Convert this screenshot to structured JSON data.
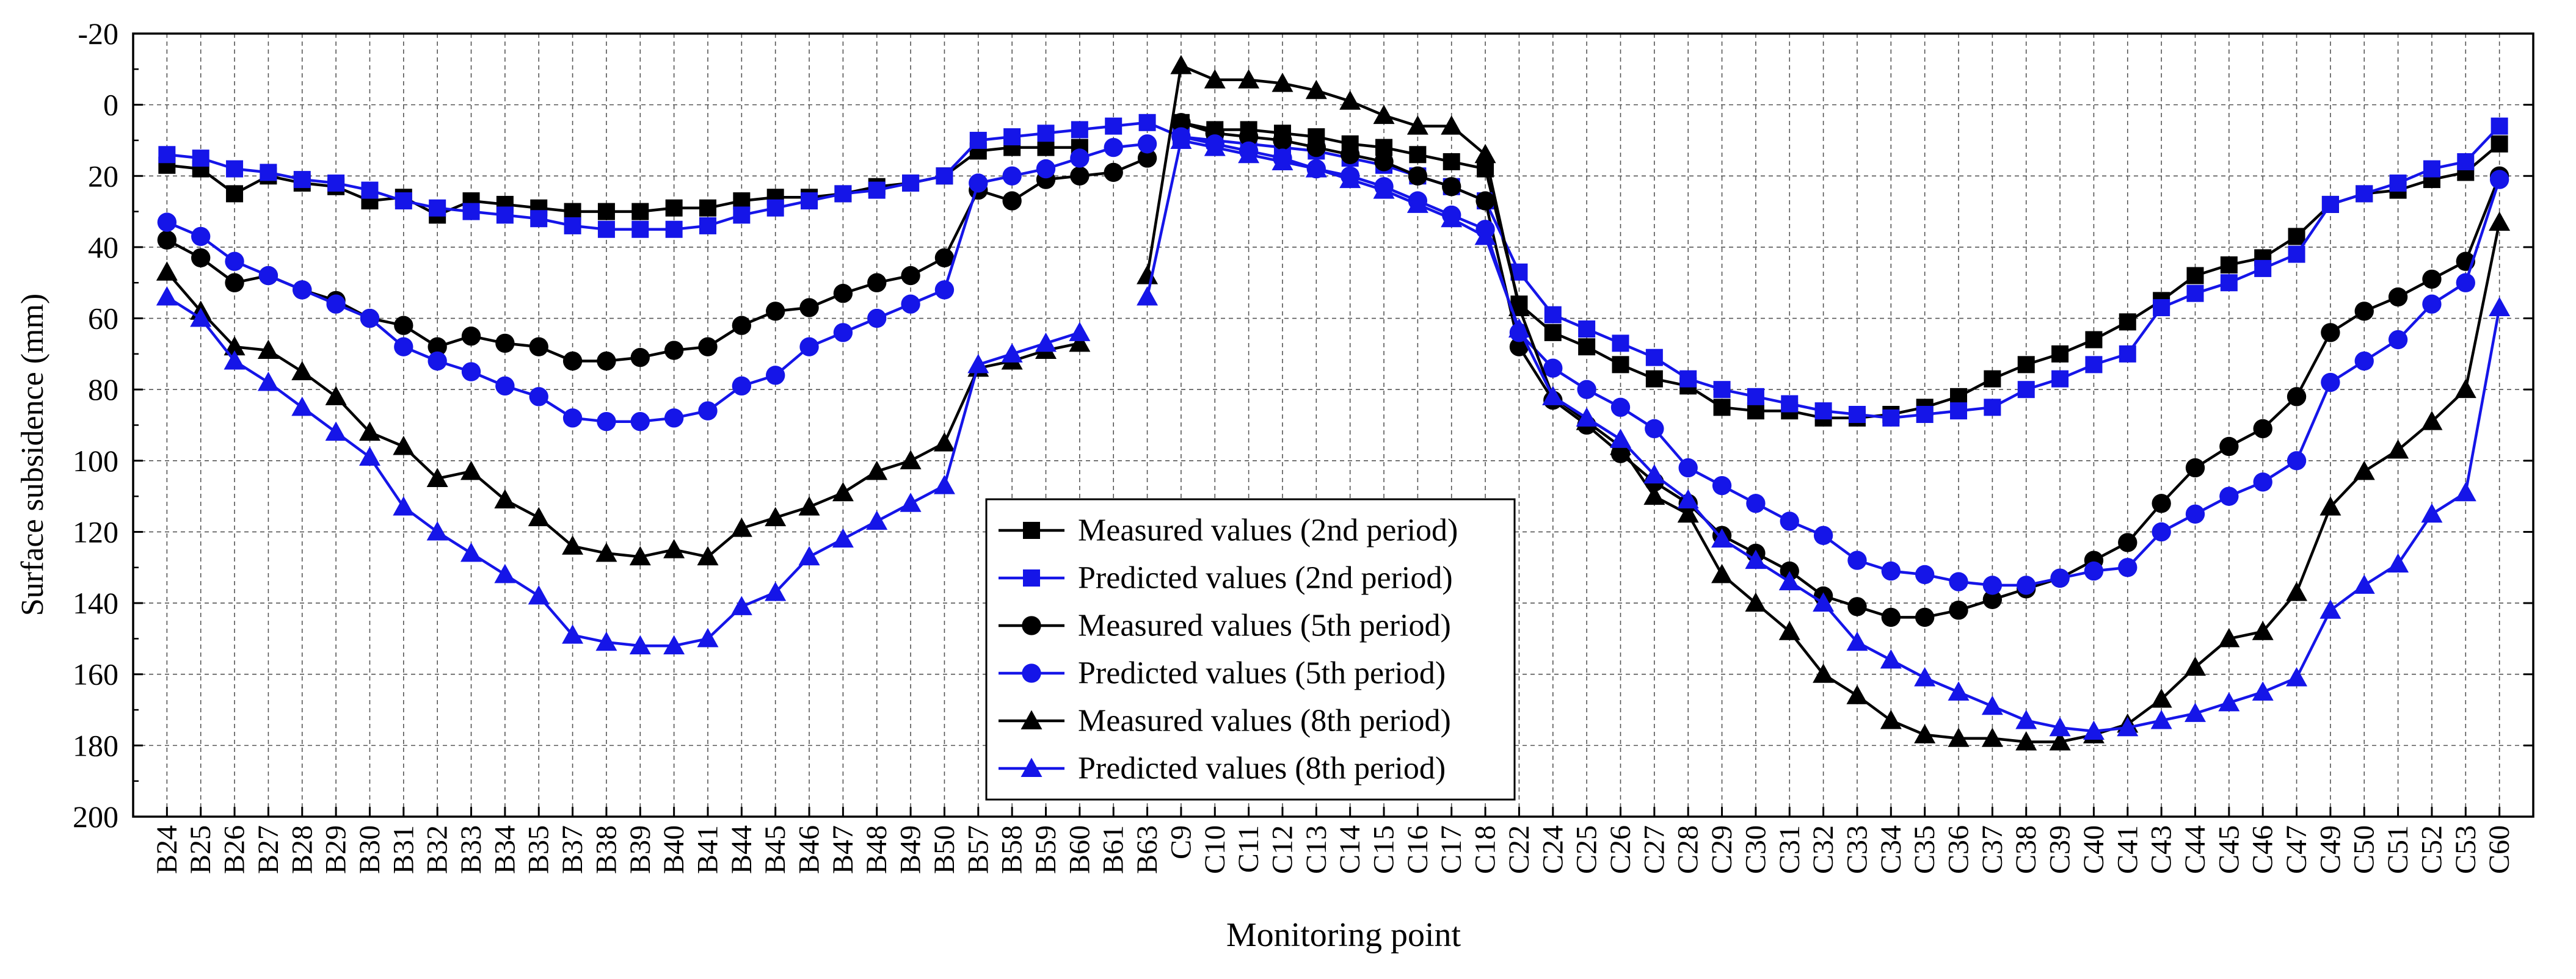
{
  "chart_data": {
    "type": "line",
    "title": "",
    "xlabel": "Monitoring point",
    "ylabel": "Surface subsidence (mm)",
    "ylim": [
      -20,
      200
    ],
    "y_inverted": true,
    "yticks": [
      -20,
      0,
      20,
      40,
      60,
      80,
      100,
      120,
      140,
      160,
      180,
      200
    ],
    "grid": true,
    "legend_position": "center",
    "categories": [
      "B24",
      "B25",
      "B26",
      "B27",
      "B28",
      "B29",
      "B30",
      "B31",
      "B32",
      "B33",
      "B34",
      "B35",
      "B37",
      "B38",
      "B39",
      "B40",
      "B41",
      "B44",
      "B45",
      "B46",
      "B47",
      "B48",
      "B49",
      "B50",
      "B57",
      "B58",
      "B59",
      "B60",
      "B61",
      "B63",
      "C9",
      "C10",
      "C11",
      "C12",
      "C13",
      "C14",
      "C15",
      "C16",
      "C17",
      "C18",
      "C22",
      "C24",
      "C25",
      "C26",
      "C27",
      "C28",
      "C29",
      "C30",
      "C31",
      "C32",
      "C33",
      "C34",
      "C35",
      "C36",
      "C37",
      "C38",
      "C39",
      "C40",
      "C41",
      "C43",
      "C44",
      "C45",
      "C46",
      "C47",
      "C49",
      "C50",
      "C51",
      "C52",
      "C53",
      "C60"
    ],
    "series": [
      {
        "name": "Measured values (2nd period)",
        "color": "#000000",
        "marker": "square",
        "values": [
          17,
          18,
          25,
          20,
          22,
          23,
          27,
          26,
          31,
          27,
          28,
          29,
          30,
          30,
          30,
          29,
          29,
          27,
          26,
          26,
          25,
          23,
          22,
          20,
          13,
          12,
          12,
          12,
          null,
          null,
          5,
          7,
          7,
          8,
          9,
          11,
          12,
          14,
          16,
          18,
          56,
          64,
          68,
          73,
          77,
          79,
          85,
          86,
          86,
          88,
          88,
          87,
          85,
          82,
          77,
          73,
          70,
          66,
          61,
          55,
          48,
          45,
          43,
          37,
          28,
          25,
          24,
          21,
          19,
          11
        ],
        "segments": [
          [
            0,
            23
          ],
          [
            23,
            24
          ],
          [
            24,
            27
          ],
          [
            30,
            39
          ],
          [
            39,
            40
          ],
          [
            40,
            69
          ]
        ]
      },
      {
        "name": "Predicted values (2nd period)",
        "color": "#1515e8",
        "marker": "square",
        "values": [
          14,
          15,
          18,
          19,
          21,
          22,
          24,
          27,
          29,
          30,
          31,
          32,
          34,
          35,
          35,
          35,
          34,
          31,
          29,
          27,
          25,
          24,
          22,
          20,
          10,
          9,
          8,
          7,
          6,
          5,
          9,
          10,
          11,
          12,
          13,
          15,
          17,
          20,
          23,
          27,
          47,
          59,
          63,
          67,
          71,
          77,
          80,
          82,
          84,
          86,
          87,
          88,
          87,
          86,
          85,
          80,
          77,
          73,
          70,
          57,
          53,
          50,
          46,
          42,
          28,
          25,
          22,
          18,
          16,
          6
        ],
        "segments": [
          [
            0,
            69
          ]
        ]
      },
      {
        "name": "Measured values (5th period)",
        "color": "#000000",
        "marker": "circle",
        "values": [
          38,
          43,
          50,
          48,
          52,
          55,
          60,
          62,
          68,
          65,
          67,
          68,
          72,
          72,
          71,
          69,
          68,
          62,
          58,
          57,
          53,
          50,
          48,
          43,
          24,
          27,
          21,
          20,
          19,
          15,
          5,
          8,
          9,
          10,
          12,
          14,
          16,
          20,
          23,
          27,
          68,
          83,
          90,
          98,
          106,
          112,
          121,
          126,
          131,
          138,
          141,
          144,
          144,
          142,
          139,
          136,
          133,
          128,
          123,
          112,
          102,
          96,
          91,
          82,
          64,
          58,
          54,
          49,
          44,
          20
        ],
        "segments": [
          [
            0,
            23
          ],
          [
            23,
            24
          ],
          [
            24,
            29
          ],
          [
            30,
            39
          ],
          [
            39,
            40
          ],
          [
            40,
            69
          ]
        ]
      },
      {
        "name": "Predicted values (5th period)",
        "color": "#1515e8",
        "marker": "circle",
        "values": [
          33,
          37,
          44,
          48,
          52,
          56,
          60,
          68,
          72,
          75,
          79,
          82,
          88,
          89,
          89,
          88,
          86,
          79,
          76,
          68,
          64,
          60,
          56,
          52,
          22,
          20,
          18,
          15,
          12,
          11,
          9,
          11,
          13,
          15,
          18,
          20,
          23,
          27,
          31,
          35,
          64,
          74,
          80,
          85,
          91,
          102,
          107,
          112,
          117,
          121,
          128,
          131,
          132,
          134,
          135,
          135,
          133,
          131,
          130,
          120,
          115,
          110,
          106,
          100,
          78,
          72,
          66,
          56,
          50,
          21
        ],
        "segments": [
          [
            0,
            23
          ],
          [
            23,
            24
          ],
          [
            24,
            29
          ],
          [
            30,
            39
          ],
          [
            39,
            40
          ],
          [
            40,
            69
          ]
        ]
      },
      {
        "name": "Measured values (8th period)",
        "color": "#000000",
        "marker": "triangle",
        "values": [
          47,
          58,
          68,
          69,
          75,
          82,
          92,
          96,
          105,
          103,
          111,
          116,
          124,
          126,
          127,
          125,
          127,
          119,
          116,
          113,
          109,
          103,
          100,
          95,
          74,
          72,
          69,
          67,
          null,
          48,
          -11,
          -7,
          -7,
          -6,
          -4,
          -1,
          3,
          6,
          6,
          14,
          57,
          82,
          89,
          96,
          110,
          115,
          132,
          140,
          148,
          160,
          166,
          173,
          177,
          178,
          178,
          179,
          179,
          177,
          174,
          167,
          158,
          150,
          148,
          137,
          113,
          103,
          97,
          89,
          80,
          33
        ],
        "segments": [
          [
            0,
            23
          ],
          [
            23,
            24
          ],
          [
            24,
            27
          ],
          [
            29,
            30
          ],
          [
            30,
            39
          ],
          [
            39,
            40
          ],
          [
            40,
            69
          ]
        ]
      },
      {
        "name": "Predicted values (8th period)",
        "color": "#1515e8",
        "marker": "triangle",
        "values": [
          54,
          60,
          72,
          78,
          85,
          92,
          99,
          113,
          120,
          126,
          132,
          138,
          149,
          151,
          152,
          152,
          150,
          141,
          137,
          127,
          122,
          117,
          112,
          107,
          73,
          70,
          67,
          64,
          null,
          54,
          10,
          12,
          14,
          16,
          18,
          21,
          24,
          28,
          32,
          37,
          63,
          82,
          88,
          94,
          104,
          111,
          122,
          128,
          134,
          140,
          151,
          156,
          161,
          165,
          169,
          173,
          175,
          176,
          175,
          173,
          171,
          168,
          165,
          161,
          142,
          135,
          129,
          115,
          109,
          57
        ],
        "segments": [
          [
            0,
            23
          ],
          [
            23,
            24
          ],
          [
            24,
            27
          ],
          [
            29,
            30
          ],
          [
            30,
            39
          ],
          [
            39,
            40
          ],
          [
            40,
            69
          ]
        ]
      }
    ]
  }
}
